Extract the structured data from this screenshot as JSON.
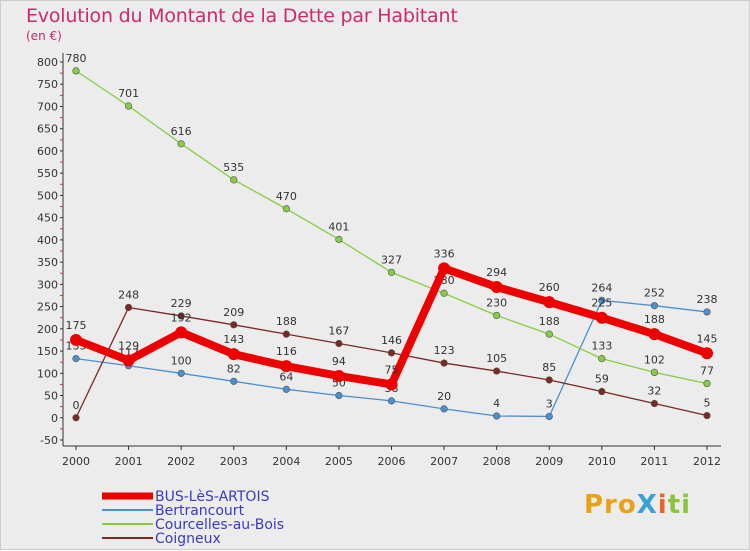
{
  "title": "Evolution du Montant de la Dette par Habitant",
  "unit": "(en €)",
  "logo": "ProXiti",
  "chart_data": {
    "type": "line",
    "title": "Evolution du Montant de la Dette par Habitant",
    "ylabel": "(en €)",
    "xlabel": "",
    "x": [
      "2000",
      "2001",
      "2002",
      "2003",
      "2004",
      "2005",
      "2006",
      "2007",
      "2008",
      "2009",
      "2010",
      "2011",
      "2012"
    ],
    "ylim": [
      -50,
      800
    ],
    "yticks": [
      -50,
      0,
      50,
      100,
      150,
      200,
      250,
      300,
      350,
      400,
      450,
      500,
      550,
      600,
      650,
      700,
      750,
      800
    ],
    "grid": false,
    "legend": "bottom-left",
    "series": [
      {
        "name": "BUS-LèS-ARTOIS",
        "color": "#ee0000",
        "values": [
          175,
          129,
          192,
          143,
          116,
          94,
          75,
          336,
          294,
          260,
          225,
          188,
          145
        ],
        "labels": [
          "175",
          "129",
          "192",
          "143",
          "116",
          "94",
          "75",
          "336",
          "294",
          "260",
          "225",
          "188",
          "145"
        ]
      },
      {
        "name": "Bertrancourt",
        "color": "#4a90d0",
        "values": [
          133,
          117,
          100,
          82,
          64,
          50,
          38,
          20,
          4,
          3,
          264,
          252,
          238
        ],
        "labels": [
          "133",
          "117",
          "100",
          "82",
          "64",
          "50",
          "38",
          "20",
          "4",
          "3",
          "264",
          "252",
          "238"
        ]
      },
      {
        "name": "Courcelles-au-Bois",
        "color": "#88cc44",
        "values": [
          780,
          701,
          616,
          535,
          470,
          401,
          327,
          280,
          230,
          188,
          133,
          102,
          77
        ],
        "labels": [
          "780",
          "701",
          "616",
          "535",
          "470",
          "401",
          "327",
          "280",
          "230",
          "188",
          "133",
          "102",
          "77"
        ]
      },
      {
        "name": "Coigneux",
        "color": "#7a2a22",
        "values": [
          0,
          248,
          229,
          209,
          188,
          167,
          146,
          123,
          105,
          85,
          59,
          32,
          5
        ],
        "labels": [
          "0",
          "248",
          "229",
          "209",
          "188",
          "167",
          "146",
          "123",
          "105",
          "85",
          "59",
          "32",
          "5"
        ]
      }
    ]
  }
}
